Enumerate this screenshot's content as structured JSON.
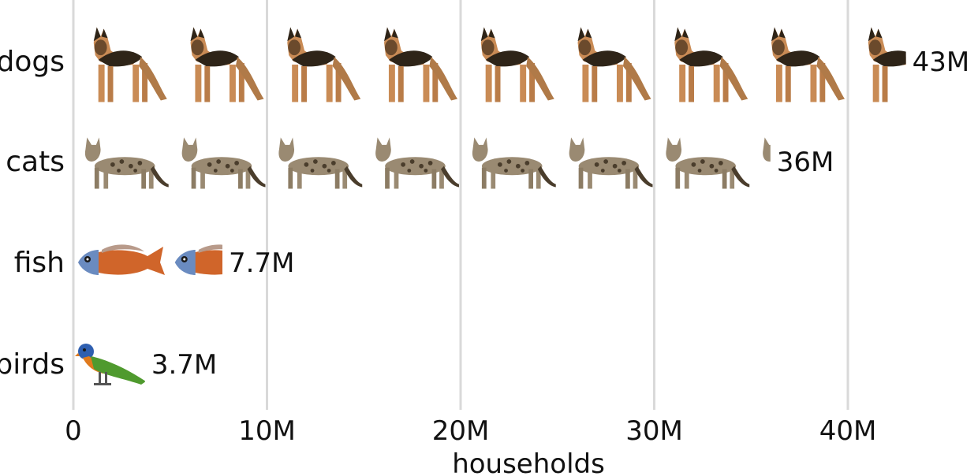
{
  "chart_data": {
    "type": "bar",
    "style": "pictograph",
    "categories": [
      "dogs",
      "cats",
      "fish",
      "birds"
    ],
    "values": [
      43,
      36,
      7.7,
      3.7
    ],
    "value_labels": [
      "43M",
      "36M",
      "7.7M",
      "3.7M"
    ],
    "icon_unit": 5,
    "icons": [
      "dog-icon",
      "cat-icon",
      "fish-icon",
      "bird-icon"
    ],
    "xlabel": "households",
    "xlim": [
      0,
      47
    ],
    "xticks": [
      0,
      10,
      20,
      30,
      40
    ],
    "xtick_labels": [
      "0",
      "10M",
      "20M",
      "30M",
      "40M"
    ],
    "grid": true,
    "colors": {
      "grid": "#d9d9d9",
      "text": "#111111",
      "dog_tan": "#c98b55",
      "dog_dark": "#2e2418",
      "cat_coat": "#9a8a72",
      "cat_spots": "#4a3d2c",
      "fish_body": "#d0652a",
      "fish_head": "#6a8bc0",
      "bird_green": "#4f9a2e",
      "bird_blue": "#2f5fb0",
      "bird_orange": "#e07a1d"
    }
  }
}
